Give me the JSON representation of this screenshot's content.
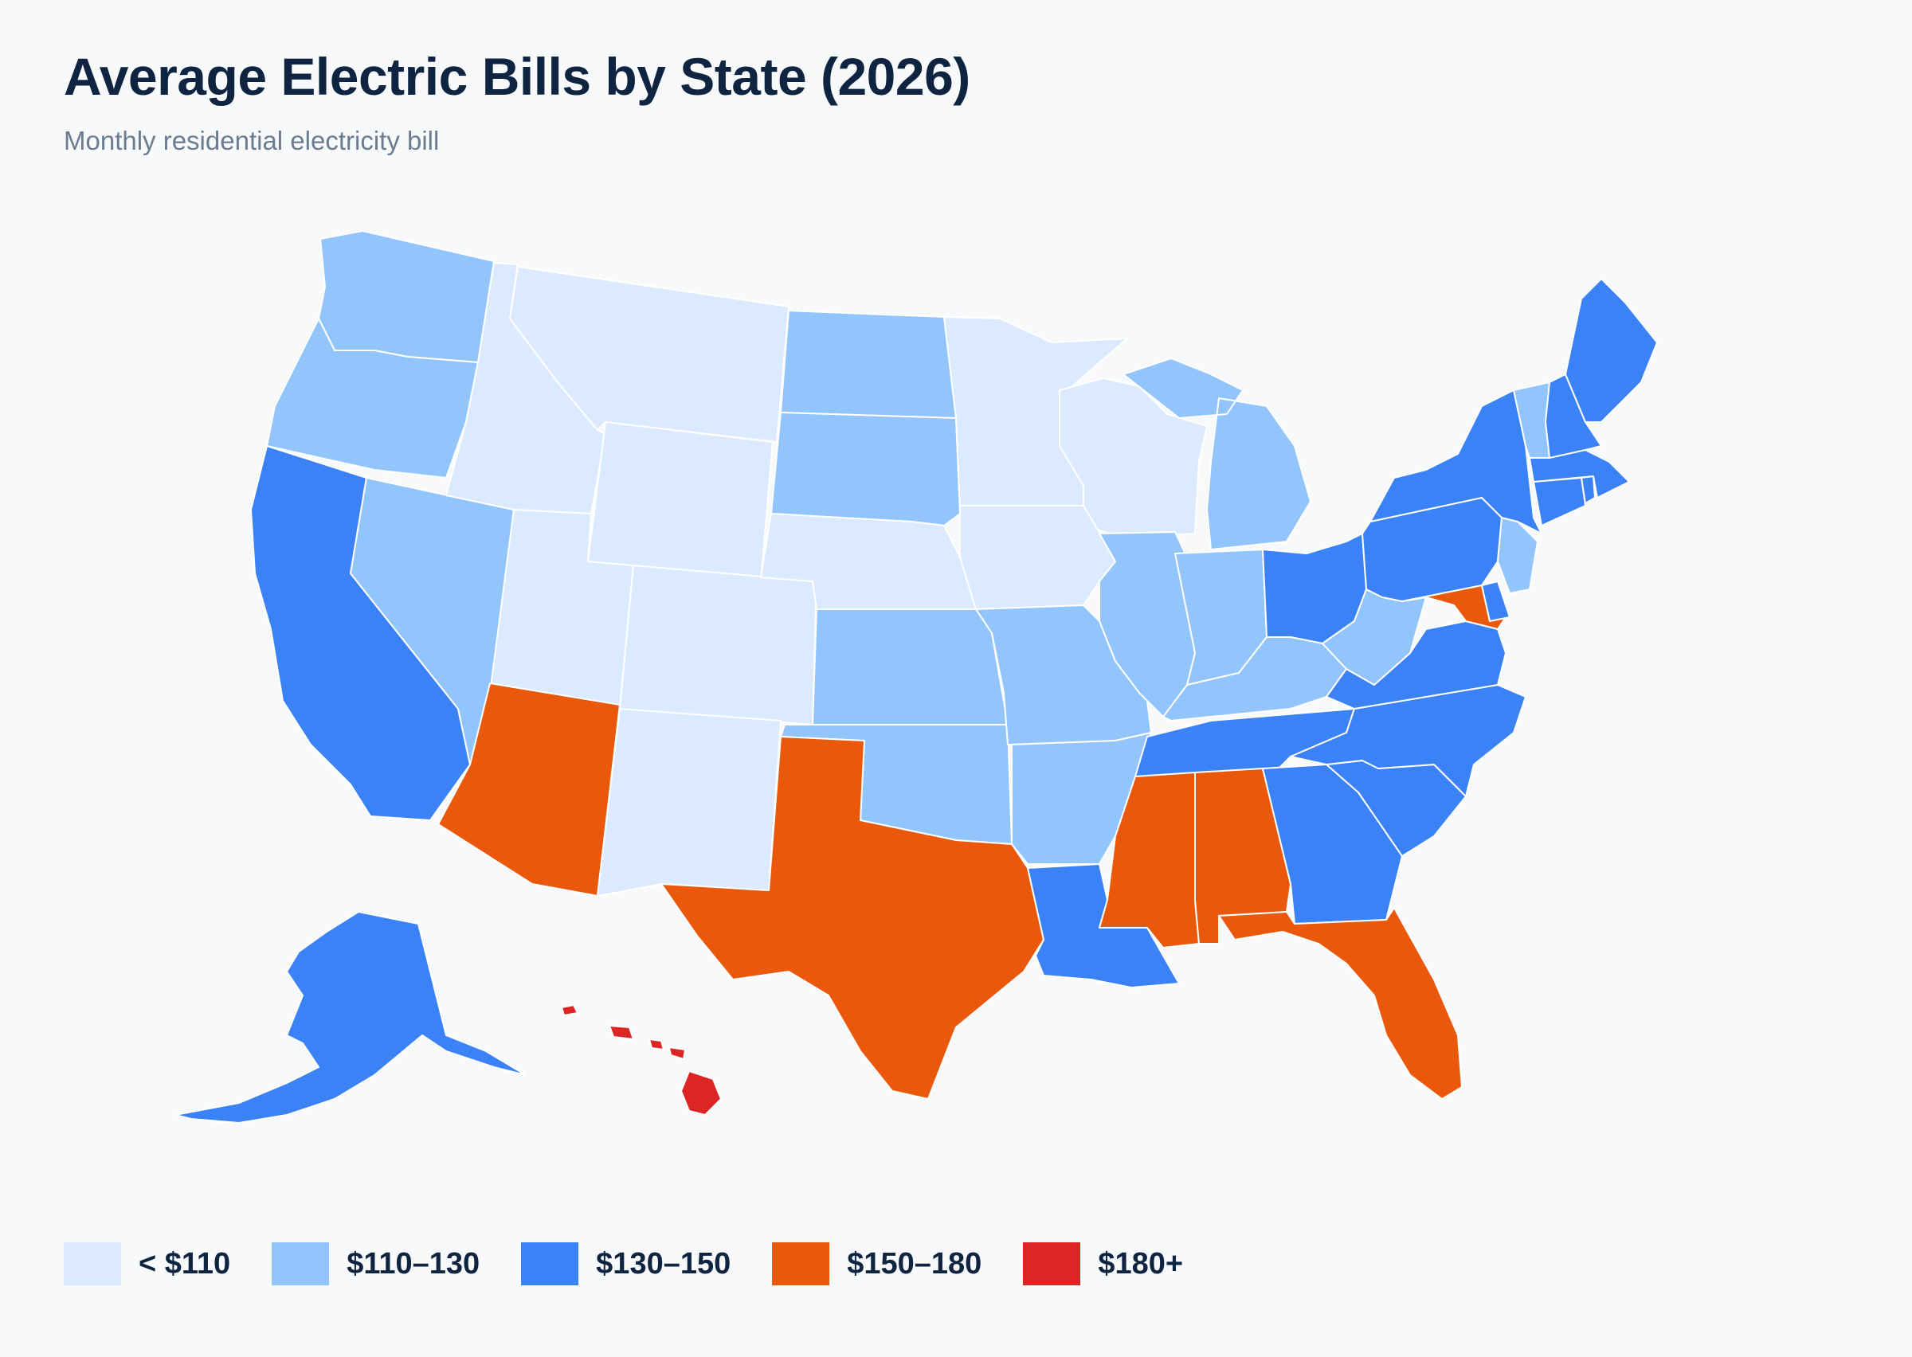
{
  "header": {
    "title": "Average Electric Bills by State (2026)",
    "subtitle": "Monthly residential electricity bill"
  },
  "colors": {
    "lt110": "#dbeafe",
    "b110_130": "#93c5fd",
    "b130_150": "#3b82f6",
    "b150_180": "#ea580c",
    "b180": "#dc2626"
  },
  "legend": [
    {
      "label": "< $110",
      "color": "#dbeafe"
    },
    {
      "label": "$110–130",
      "color": "#93c5fd"
    },
    {
      "label": "$130–150",
      "color": "#3b82f6"
    },
    {
      "label": "$150–180",
      "color": "#ea580c"
    },
    {
      "label": "$180+",
      "color": "#dc2626"
    }
  ],
  "states": {
    "WA": "b110_130",
    "OR": "b110_130",
    "CA": "b130_150",
    "NV": "b110_130",
    "ID": "lt110",
    "MT": "lt110",
    "WY": "lt110",
    "UT": "lt110",
    "CO": "lt110",
    "AZ": "b150_180",
    "NM": "lt110",
    "ND": "b110_130",
    "SD": "b110_130",
    "NE": "lt110",
    "KS": "b110_130",
    "OK": "b110_130",
    "TX": "b150_180",
    "MN": "lt110",
    "IA": "lt110",
    "MO": "b110_130",
    "AR": "b110_130",
    "LA": "b130_150",
    "WI": "lt110",
    "IL": "b110_130",
    "MI": "b110_130",
    "IN": "b110_130",
    "OH": "b130_150",
    "KY": "b110_130",
    "TN": "b130_150",
    "MS": "b150_180",
    "AL": "b150_180",
    "GA": "b130_150",
    "FL": "b150_180",
    "SC": "b130_150",
    "NC": "b130_150",
    "VA": "b130_150",
    "WV": "b110_130",
    "MD": "b150_180",
    "DE": "b130_150",
    "PA": "b130_150",
    "NJ": "b110_130",
    "NY": "b130_150",
    "CT": "b130_150",
    "RI": "b130_150",
    "MA": "b130_150",
    "VT": "b110_130",
    "NH": "b130_150",
    "ME": "b130_150",
    "AK": "b130_150",
    "HI": "b180"
  }
}
